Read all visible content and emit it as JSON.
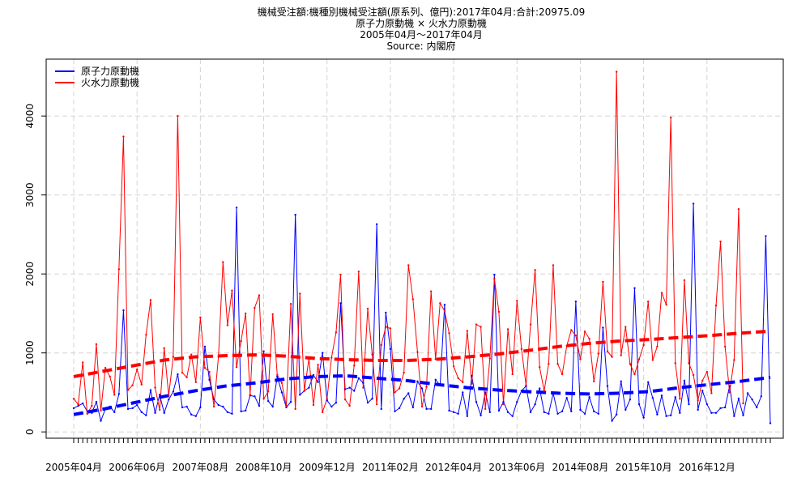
{
  "chart_data": {
    "type": "line",
    "title": "機械受注額:機種別機械受注額(原系列、億円):2017年04月:合計:20975.09",
    "subtitle_lines": [
      "原子力原動機 × 火水力原動機",
      "2005年04月～2017年04月",
      "Source: 内閣府"
    ],
    "xlabel": "",
    "ylabel": "",
    "x_start": "2005-04",
    "x_end": "2017-04",
    "x_tick_labels": [
      "2005年04月",
      "2006年06月",
      "2007年08月",
      "2008年10月",
      "2009年12月",
      "2011年02月",
      "2012年04月",
      "2013年06月",
      "2014年08月",
      "2015年10月",
      "2016年12月"
    ],
    "y_ticks": [
      0,
      1000,
      2000,
      3000,
      4000
    ],
    "ylim": [
      -80,
      4720
    ],
    "grid": true,
    "legend_position": "top-left",
    "series": [
      {
        "name": "原子力原動機",
        "color": "#0000ff",
        "values": [
          300,
          330,
          360,
          260,
          240,
          380,
          140,
          290,
          320,
          250,
          480,
          1540,
          290,
          300,
          340,
          250,
          210,
          530,
          240,
          470,
          240,
          410,
          510,
          730,
          310,
          320,
          220,
          200,
          310,
          1080,
          660,
          410,
          340,
          320,
          250,
          230,
          2840,
          260,
          270,
          460,
          450,
          330,
          1020,
          390,
          320,
          700,
          500,
          310,
          380,
          2750,
          470,
          520,
          560,
          720,
          630,
          1000,
          400,
          320,
          370,
          1630,
          540,
          560,
          520,
          680,
          620,
          370,
          420,
          2630,
          290,
          1510,
          1050,
          260,
          300,
          420,
          490,
          310,
          640,
          550,
          290,
          290,
          660,
          590,
          1610,
          270,
          250,
          230,
          500,
          200,
          710,
          380,
          210,
          500,
          250,
          1990,
          270,
          380,
          250,
          200,
          380,
          520,
          580,
          250,
          350,
          550,
          250,
          230,
          490,
          230,
          260,
          430,
          260,
          1650,
          280,
          230,
          440,
          260,
          230,
          1320,
          580,
          140,
          220,
          640,
          280,
          410,
          1820,
          350,
          180,
          630,
          430,
          220,
          460,
          200,
          210,
          440,
          240,
          650,
          350,
          2890,
          280,
          520,
          350,
          240,
          240,
          300,
          310,
          580,
          200,
          420,
          210,
          490,
          410,
          310,
          450,
          2480,
          110
        ]
      },
      {
        "name": "火水力原動機",
        "color": "#ff0000",
        "values": [
          420,
          350,
          880,
          230,
          330,
          1110,
          270,
          810,
          700,
          470,
          2060,
          3740,
          530,
          590,
          790,
          600,
          1230,
          1670,
          560,
          280,
          1060,
          460,
          950,
          4000,
          750,
          690,
          980,
          630,
          1450,
          810,
          760,
          320,
          950,
          2150,
          1350,
          1790,
          820,
          1150,
          1500,
          470,
          1570,
          1730,
          420,
          510,
          1490,
          720,
          620,
          330,
          1620,
          290,
          1750,
          520,
          930,
          340,
          850,
          250,
          420,
          940,
          1260,
          1990,
          410,
          330,
          840,
          2030,
          560,
          1560,
          980,
          350,
          1100,
          1330,
          1310,
          500,
          550,
          750,
          2110,
          1680,
          1010,
          320,
          570,
          1780,
          920,
          1630,
          1530,
          1250,
          830,
          680,
          630,
          1280,
          610,
          1360,
          1330,
          290,
          930,
          1940,
          1520,
          350,
          1300,
          730,
          1660,
          1050,
          590,
          1360,
          2050,
          820,
          520,
          860,
          2110,
          860,
          730,
          1090,
          1290,
          1220,
          920,
          1270,
          1180,
          640,
          990,
          1900,
          1020,
          950,
          4560,
          970,
          1330,
          860,
          730,
          920,
          1100,
          1650,
          910,
          1080,
          1760,
          1610,
          3980,
          870,
          420,
          1920,
          870,
          720,
          400,
          650,
          760,
          490,
          1600,
          2410,
          1080,
          500,
          910,
          2820,
          360
        ]
      },
      {
        "name": "",
        "color": "#0000ff",
        "style": "dashed-trend",
        "values": [
          220,
          290,
          370,
          450,
          520,
          580,
          620,
          670,
          700,
          710,
          680,
          650,
          600,
          560,
          530,
          510,
          490,
          480,
          490,
          510,
          560,
          600,
          640,
          690
        ]
      },
      {
        "name": "",
        "color": "#ff0000",
        "style": "dashed-trend",
        "values": [
          700,
          770,
          840,
          910,
          950,
          965,
          975,
          960,
          930,
          915,
          905,
          905,
          920,
          950,
          985,
          1030,
          1080,
          1120,
          1150,
          1170,
          1195,
          1220,
          1250,
          1275
        ]
      }
    ]
  }
}
